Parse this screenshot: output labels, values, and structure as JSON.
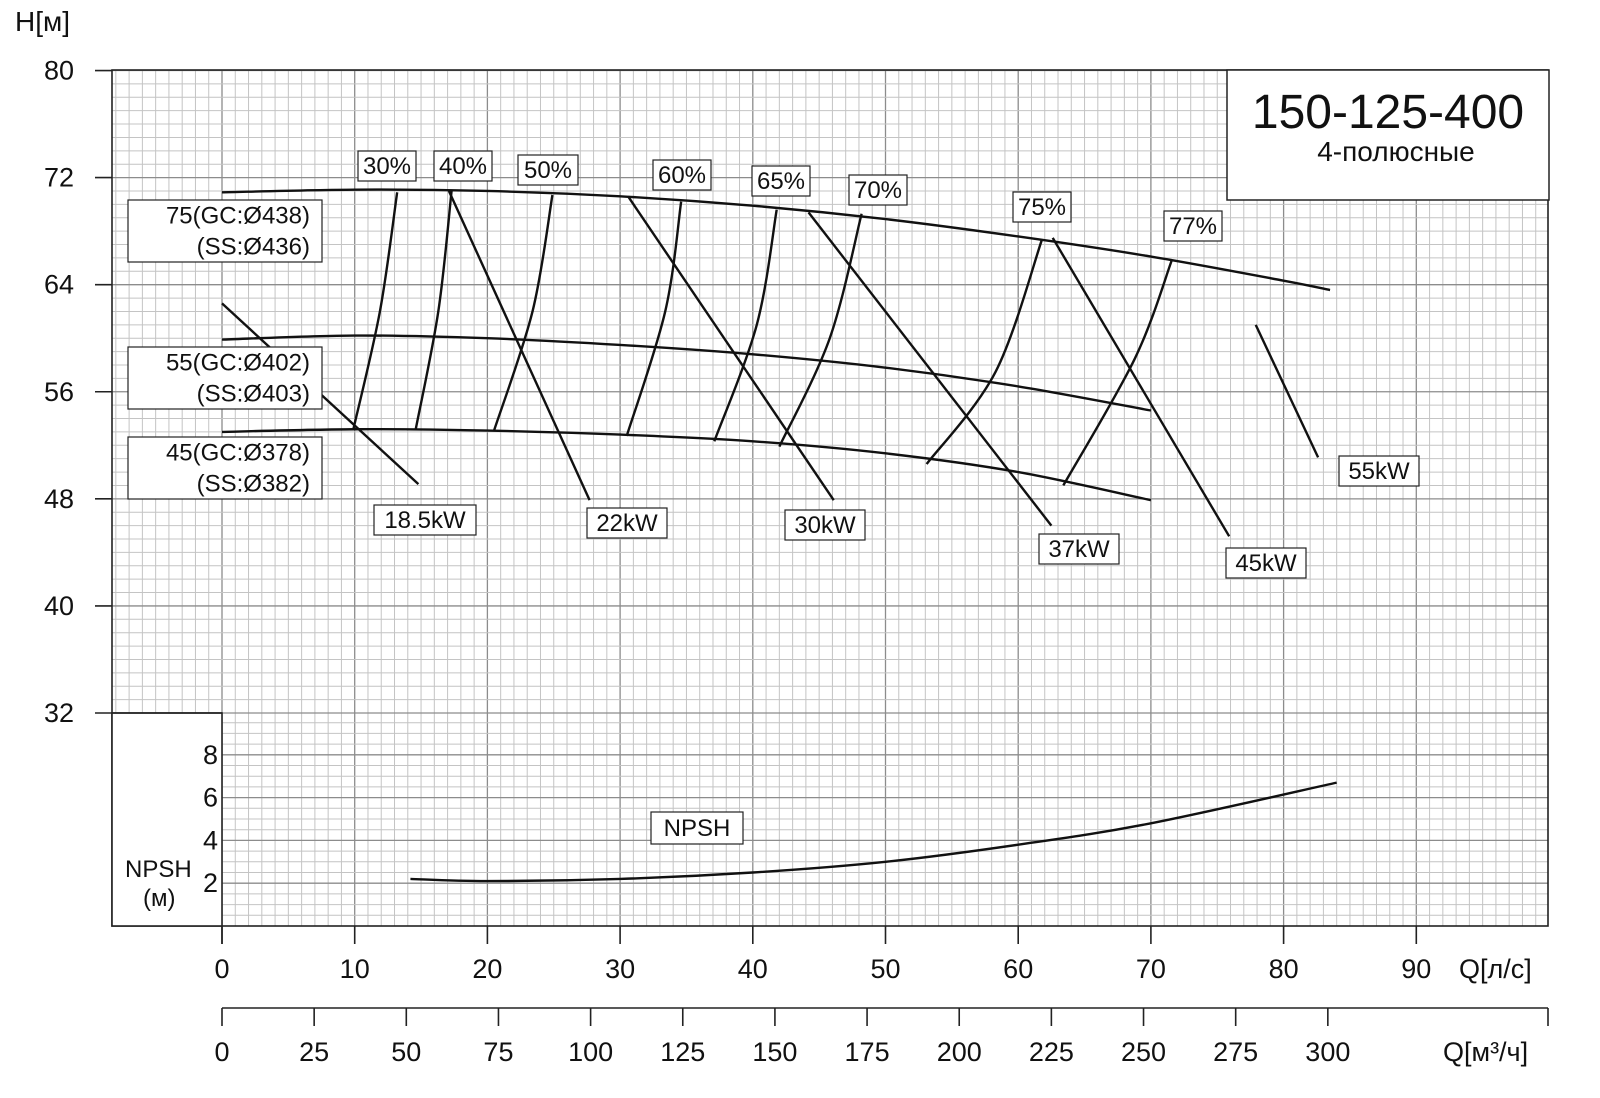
{
  "chart_data": {
    "type": "line",
    "title": "150-125-400",
    "subtitle": "4-полюсные",
    "ylabel": "H[м]",
    "xlabel": "Q[л/с]",
    "x2label": "Q[м³/ч]",
    "npsh_label": "NPSH",
    "npsh_unit": "(м)",
    "xlim": [
      0,
      100
    ],
    "ylim": [
      32,
      80
    ],
    "x_ticks": [
      "0",
      "10",
      "20",
      "30",
      "40",
      "50",
      "60",
      "70",
      "80",
      "90"
    ],
    "y_ticks": [
      "32",
      "40",
      "48",
      "56",
      "64",
      "72",
      "80"
    ],
    "x2_ticks": [
      "0",
      "25",
      "50",
      "75",
      "100",
      "125",
      "150",
      "175",
      "200",
      "225",
      "250",
      "275",
      "300"
    ],
    "npsh_ticks": [
      "2",
      "4",
      "6",
      "8"
    ],
    "npsh_ylim": [
      0,
      10
    ],
    "head_curves": [
      {
        "name": "75(GC:Ø438)",
        "name2": "(SS:Ø436)",
        "x": [
          0,
          10,
          20,
          30,
          40,
          50,
          60,
          70,
          80,
          83.5
        ],
        "y": [
          70.9,
          71.1,
          71.0,
          70.6,
          69.9,
          68.9,
          67.6,
          66.1,
          64.3,
          63.6
        ]
      },
      {
        "name": "55(GC:Ø402)",
        "name2": "(SS:Ø403)",
        "x": [
          0,
          10,
          20,
          30,
          40,
          50,
          60,
          70
        ],
        "y": [
          59.9,
          60.2,
          60.0,
          59.5,
          58.8,
          57.8,
          56.4,
          54.6
        ]
      },
      {
        "name": "45(GC:Ø378)",
        "name2": "(SS:Ø382)",
        "x": [
          0,
          10,
          20,
          30,
          40,
          50,
          60,
          70
        ],
        "y": [
          53.0,
          53.2,
          53.1,
          52.8,
          52.3,
          51.4,
          50.0,
          47.9
        ]
      }
    ],
    "efficiency_lines": [
      {
        "name": "30%",
        "x": [
          9.9,
          11.9,
          13.2
        ],
        "y": [
          53.2,
          62.0,
          70.9
        ]
      },
      {
        "name": "40%",
        "x": [
          14.6,
          16.3,
          17.3
        ],
        "y": [
          53.2,
          62.0,
          71.0
        ]
      },
      {
        "name": "50%",
        "x": [
          20.5,
          23.4,
          24.9
        ],
        "y": [
          53.1,
          62.0,
          70.7
        ]
      },
      {
        "name": "60%",
        "x": [
          30.5,
          33.4,
          34.6
        ],
        "y": [
          52.7,
          62.0,
          70.2
        ]
      },
      {
        "name": "65%",
        "x": [
          37.1,
          40.3,
          41.8
        ],
        "y": [
          52.3,
          61.0,
          69.6
        ]
      },
      {
        "name": "70%",
        "x": [
          42.0,
          45.8,
          48.2
        ],
        "y": [
          51.9,
          60.0,
          69.3
        ]
      },
      {
        "name": "75%",
        "x": [
          53.1,
          58.3,
          61.8
        ],
        "y": [
          50.6,
          57.5,
          67.4
        ]
      },
      {
        "name": "77%",
        "x": [
          63.4,
          68.8,
          71.6
        ],
        "y": [
          49.0,
          58.5,
          65.9
        ]
      }
    ],
    "power_lines": [
      {
        "name": "18.5kW",
        "x": [
          0,
          14.8
        ],
        "y": [
          62.6,
          49.1
        ]
      },
      {
        "name": "22kW",
        "x": [
          17.1,
          27.7
        ],
        "y": [
          71.0,
          47.9
        ]
      },
      {
        "name": "30kW",
        "x": [
          30.6,
          46.1
        ],
        "y": [
          70.6,
          47.9
        ]
      },
      {
        "name": "37kW",
        "x": [
          44.2,
          62.5
        ],
        "y": [
          69.4,
          46.0
        ]
      },
      {
        "name": "45kW",
        "x": [
          62.6,
          75.9
        ],
        "y": [
          67.5,
          45.2
        ]
      },
      {
        "name": "55kW",
        "x": [
          77.9,
          82.6
        ],
        "y": [
          61.0,
          51.1
        ]
      }
    ],
    "npsh": {
      "name": "NPSH",
      "x": [
        14.2,
        20,
        30,
        40,
        50,
        60,
        70,
        84
      ],
      "y": [
        2.2,
        2.1,
        2.2,
        2.5,
        3.0,
        3.8,
        4.8,
        6.7
      ]
    },
    "grid": true
  }
}
